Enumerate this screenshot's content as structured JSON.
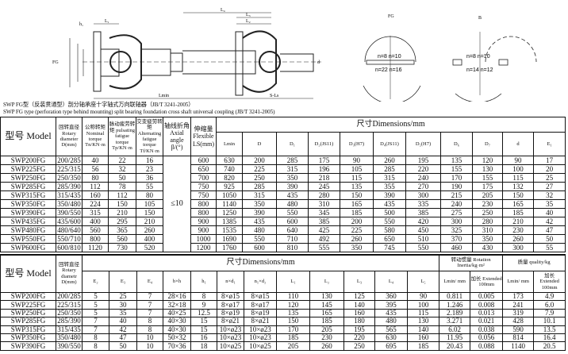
{
  "drawing": {
    "fg_title": "FG",
    "b_title": "B",
    "fg_n_top": "n=8 n=10",
    "fg_n_bottom": "n=22 n=16",
    "b_n_top": "n=8 n=10",
    "b_n_bottom": "n=14 n=12",
    "shaft_labels": [
      "L₁",
      "L₄",
      "L₃",
      "L₂",
      "Lmin",
      "S-Ls",
      "FG",
      "h₁",
      "d"
    ]
  },
  "captions": {
    "cn": "SWP FG型（反装贯通型）剖分轴承座十字轴式万向联轴器（JB/T 3241-2005）",
    "en": "SWP FG type (perforation type behind mounting) split bearing foundation cross shaft universal coupling (JB/T 3241-2005)"
  },
  "top_table": {
    "headers": {
      "model": "型号 Model",
      "rotary": "回转直径 Rotary diameter D(mm)",
      "nominal": "公称转矩 Nominal torque Tn/KN·m",
      "pulsating": "脉动疲劳转矩 pulsating fatigue torque Tp/KN·m",
      "alternating": "交变疲劳转矩 Alternating fatigue torque Tf/KN·m",
      "axial": "轴线折角 Axial angle β/(°)",
      "flexible": "伸缩量 Flexible LS(mm)",
      "dimensions": "尺寸Dimensions/mm",
      "dim_cols": [
        "Lmin",
        "D",
        "D₁",
        "D₂(JS11)",
        "D₃(H7)",
        "D₄(JS11)",
        "D₅(H7)",
        "D₆",
        "D₇",
        "d",
        "E₁"
      ]
    },
    "axial_angle_value": "≤10",
    "rows": [
      [
        "SWP200FG",
        "200/285",
        "40",
        "22",
        "16",
        "600",
        "630",
        "200",
        "285",
        "175",
        "90",
        "260",
        "195",
        "135",
        "120",
        "90",
        "17"
      ],
      [
        "SWP225FG",
        "225/315",
        "56",
        "32",
        "23",
        "650",
        "740",
        "225",
        "315",
        "196",
        "105",
        "285",
        "220",
        "155",
        "130",
        "100",
        "20"
      ],
      [
        "SWP250FG",
        "250/350",
        "80",
        "50",
        "36",
        "700",
        "820",
        "250",
        "350",
        "218",
        "115",
        "315",
        "240",
        "170",
        "155",
        "115",
        "25"
      ],
      [
        "SWP285FG",
        "285/390",
        "112",
        "78",
        "55",
        "750",
        "925",
        "285",
        "390",
        "245",
        "135",
        "355",
        "270",
        "190",
        "175",
        "132",
        "27"
      ],
      [
        "SWP315FG",
        "315/435",
        "160",
        "112",
        "80",
        "750",
        "1050",
        "315",
        "435",
        "280",
        "150",
        "390",
        "300",
        "215",
        "205",
        "150",
        "32"
      ],
      [
        "SWP350FG",
        "350/480",
        "224",
        "150",
        "105",
        "800",
        "1140",
        "350",
        "480",
        "310",
        "165",
        "435",
        "335",
        "240",
        "230",
        "165",
        "35"
      ],
      [
        "SWP390FG",
        "390/550",
        "315",
        "210",
        "150",
        "800",
        "1250",
        "390",
        "550",
        "345",
        "185",
        "500",
        "385",
        "275",
        "250",
        "185",
        "40"
      ],
      [
        "SWP435FG",
        "435/600",
        "400",
        "295",
        "210",
        "900",
        "1385",
        "435",
        "600",
        "385",
        "200",
        "550",
        "420",
        "300",
        "280",
        "210",
        "42"
      ],
      [
        "SWP480FG",
        "480/640",
        "560",
        "365",
        "260",
        "900",
        "1535",
        "480",
        "640",
        "425",
        "225",
        "580",
        "450",
        "325",
        "310",
        "230",
        "47"
      ],
      [
        "SWP550FG",
        "550/710",
        "800",
        "560",
        "400",
        "1000",
        "1690",
        "550",
        "710",
        "492",
        "260",
        "650",
        "510",
        "370",
        "350",
        "260",
        "50"
      ],
      [
        "SWP600FG",
        "600/810",
        "1120",
        "730",
        "520",
        "1200",
        "1760",
        "600",
        "810",
        "555",
        "350",
        "745",
        "550",
        "460",
        "430",
        "300",
        "55"
      ]
    ]
  },
  "bottom_table": {
    "headers": {
      "model": "型号 Model",
      "rotary": "回转直径 Rotary diametr D(mm)",
      "dimensions": "尺寸Dimensions/mm",
      "inertia": "转动惯量 Rotation Inertia/kg·m²",
      "quality": "质量 quality/kg",
      "dim_cols": [
        "E₂",
        "E₃",
        "E₄",
        "b×h",
        "h₁",
        "n×d₁",
        "n₁×d₂",
        "L₁",
        "L₂",
        "L₃",
        "L₄",
        "L₅"
      ],
      "lmin": "Lmin/ mm",
      "extended": "加长 Extended 100mm"
    },
    "rows": [
      [
        "SWP200FG",
        "200/285",
        "5",
        "25",
        "7",
        "28×16",
        "8",
        "8×ø15",
        "8×ø15",
        "110",
        "130",
        "125",
        "360",
        "90",
        "0.811",
        "0.005",
        "173",
        "4.9"
      ],
      [
        "SWP225FG",
        "225/315",
        "5",
        "30",
        "7",
        "32×18",
        "9",
        "8×ø17",
        "8×ø17",
        "120",
        "145",
        "140",
        "395",
        "100",
        "1.246",
        "0.008",
        "241",
        "6.0"
      ],
      [
        "SWP250FG",
        "250/350",
        "5",
        "35",
        "7",
        "40×25",
        "12.5",
        "8×ø19",
        "8×ø19",
        "135",
        "165",
        "160",
        "435",
        "115",
        "2.189",
        "0.013",
        "319",
        "7.9"
      ],
      [
        "SWP285FG",
        "285/390",
        "7",
        "40",
        "8",
        "40×30",
        "15",
        "8×ø21",
        "8×ø21",
        "150",
        "185",
        "180",
        "480",
        "130",
        "3.271",
        "0.021",
        "428",
        "10.1"
      ],
      [
        "SWP315FG",
        "315/435",
        "7",
        "42",
        "8",
        "40×30",
        "15",
        "10×ø23",
        "10×ø23",
        "170",
        "205",
        "195",
        "565",
        "140",
        "6.02",
        "0.038",
        "590",
        "13.5"
      ],
      [
        "SWP350FG",
        "350/480",
        "8",
        "47",
        "10",
        "50×32",
        "16",
        "10×ø23",
        "10×ø23",
        "185",
        "230",
        "220",
        "630",
        "160",
        "11.95",
        "0.056",
        "814",
        "16.4"
      ],
      [
        "SWP390FG",
        "390/550",
        "8",
        "50",
        "10",
        "70×36",
        "18",
        "10×ø25",
        "10×ø25",
        "205",
        "260",
        "250",
        "695",
        "185",
        "20.43",
        "0.088",
        "1140",
        "20.5"
      ]
    ]
  }
}
